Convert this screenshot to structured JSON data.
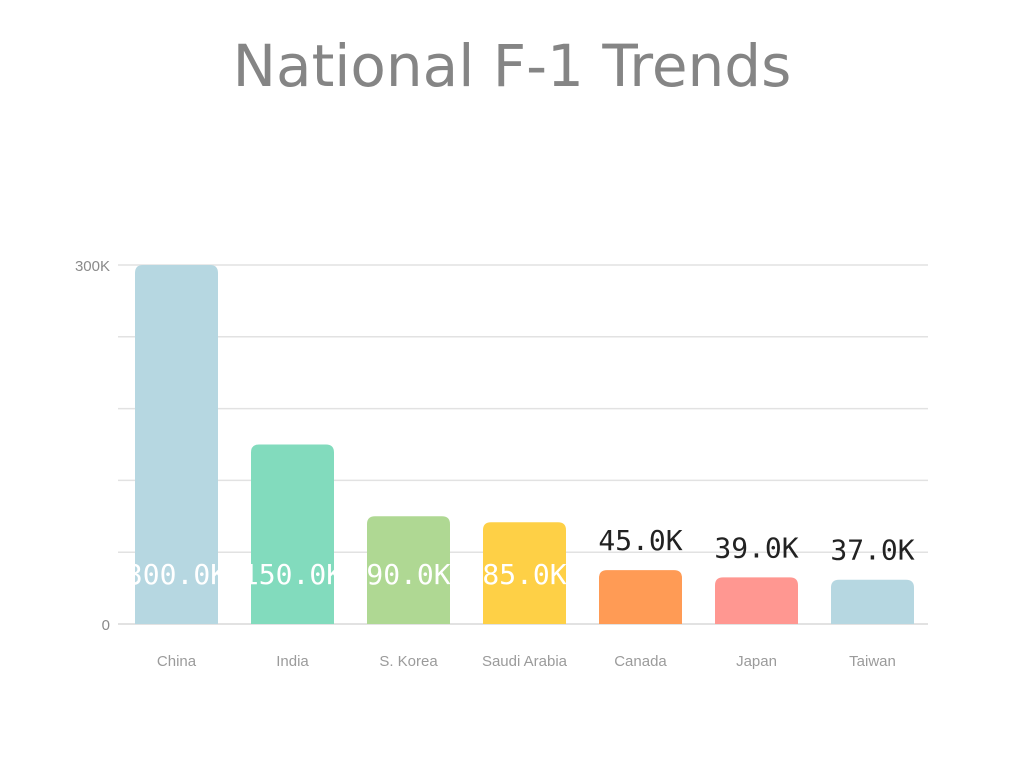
{
  "chart_data": {
    "type": "bar",
    "title": "National F-1 Trends",
    "categories": [
      "China",
      "India",
      "S. Korea",
      "Saudi Arabia",
      "Canada",
      "Japan",
      "Taiwan"
    ],
    "values": [
      300000,
      150000,
      90000,
      85000,
      45000,
      39000,
      37000
    ],
    "data_labels": [
      "300.0K",
      "150.0K",
      "90.0K",
      "85.0K",
      "45.0K",
      "39.0K",
      "37.0K"
    ],
    "colors": [
      "#b6d7e1",
      "#82dbbd",
      "#afd893",
      "#fed046",
      "#ff9b55",
      "#ff9791",
      "#b6d7e1"
    ],
    "ytick_values": [
      0,
      300000
    ],
    "ytick_labels": [
      "0",
      "300K"
    ],
    "ylim": [
      0,
      300000
    ],
    "gridlines": true,
    "gridline_count": 5,
    "legend": "none",
    "xlabel": "",
    "ylabel": ""
  }
}
